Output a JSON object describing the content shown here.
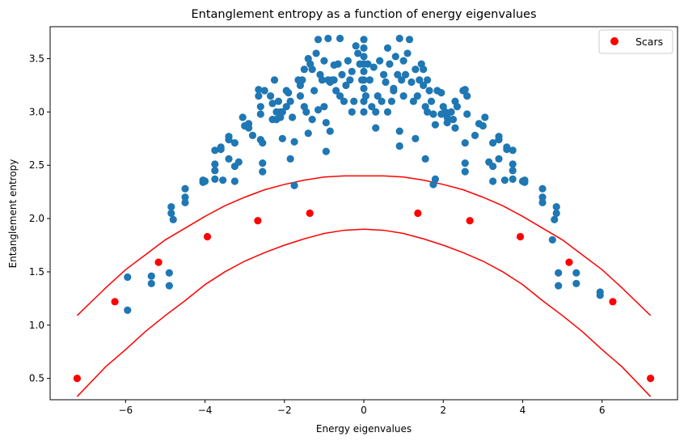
{
  "chart_data": {
    "type": "scatter",
    "title": "Entanglement entropy as a function of energy eigenvalues",
    "xlabel": "Energy eigenvalues",
    "ylabel": "Entanglement entropy",
    "xlim": [
      -7.9,
      7.9
    ],
    "ylim": [
      0.3,
      3.8
    ],
    "xticks": [
      -6,
      -4,
      -2,
      0,
      2,
      4,
      6
    ],
    "xtick_labels": [
      "−6",
      "−4",
      "−2",
      "0",
      "2",
      "4",
      "6"
    ],
    "yticks": [
      0.5,
      1.0,
      1.5,
      2.0,
      2.5,
      3.0,
      3.5
    ],
    "ytick_labels": [
      "0.5",
      "1.0",
      "1.5",
      "2.0",
      "2.5",
      "3.0",
      "3.5"
    ],
    "grid": false,
    "legend": {
      "position": "top-right",
      "entries": [
        "Scars"
      ]
    },
    "colors": {
      "eigenstates": "#1f77b4",
      "scars": "#ff0000",
      "bounds": "#ff0000"
    },
    "series": [
      {
        "kind": "scatter",
        "color": "#1f77b4",
        "points": [
          [
            -5.95,
            1.45
          ],
          [
            -5.95,
            1.14
          ],
          [
            -5.35,
            1.46
          ],
          [
            -5.35,
            1.39
          ],
          [
            -4.9,
            1.49
          ],
          [
            -4.9,
            1.37
          ],
          [
            -4.85,
            2.11
          ],
          [
            -4.85,
            2.05
          ],
          [
            -4.8,
            1.99
          ],
          [
            -4.5,
            2.28
          ],
          [
            -4.5,
            2.2
          ],
          [
            -4.5,
            2.15
          ],
          [
            -4.05,
            2.34
          ],
          [
            -4.05,
            2.36
          ],
          [
            -4.0,
            2.35
          ],
          [
            -3.75,
            2.64
          ],
          [
            -3.75,
            2.51
          ],
          [
            -3.75,
            2.45
          ],
          [
            -3.75,
            2.37
          ],
          [
            -3.6,
            2.67
          ],
          [
            -3.6,
            2.65
          ],
          [
            -3.55,
            2.36
          ],
          [
            -3.4,
            2.77
          ],
          [
            -3.4,
            2.74
          ],
          [
            -3.4,
            2.56
          ],
          [
            -3.25,
            2.71
          ],
          [
            -3.25,
            2.49
          ],
          [
            -3.25,
            2.35
          ],
          [
            -3.15,
            2.53
          ],
          [
            -3.05,
            2.95
          ],
          [
            -3.0,
            2.87
          ],
          [
            -2.9,
            2.89
          ],
          [
            -2.9,
            2.85
          ],
          [
            -2.8,
            2.78
          ],
          [
            -2.65,
            3.21
          ],
          [
            -2.65,
            3.15
          ],
          [
            -2.6,
            3.05
          ],
          [
            -2.6,
            2.98
          ],
          [
            -2.6,
            2.74
          ],
          [
            -2.55,
            2.71
          ],
          [
            -2.55,
            2.52
          ],
          [
            -2.55,
            2.44
          ],
          [
            -2.3,
            3.08
          ],
          [
            -2.3,
            2.93
          ],
          [
            -2.25,
            3.3
          ],
          [
            -2.2,
            3.0
          ],
          [
            -2.2,
            2.93
          ],
          [
            -2.15,
            3.1
          ],
          [
            -2.1,
            3.0
          ],
          [
            -2.05,
            2.75
          ],
          [
            -1.95,
            3.2
          ],
          [
            -1.9,
            3.18
          ],
          [
            -1.85,
            3.1
          ],
          [
            -1.8,
            2.95
          ],
          [
            -1.75,
            2.72
          ],
          [
            -1.65,
            3.3
          ],
          [
            -1.6,
            3.25
          ],
          [
            -1.55,
            3.3
          ],
          [
            -1.5,
            3.05
          ],
          [
            -1.45,
            3.0
          ],
          [
            -1.4,
            2.8
          ],
          [
            -1.4,
            3.5
          ],
          [
            -1.35,
            3.45
          ],
          [
            -1.3,
            3.4
          ],
          [
            -1.25,
            3.2
          ],
          [
            -1.2,
            3.55
          ],
          [
            -1.15,
            3.68
          ],
          [
            -1.1,
            3.35
          ],
          [
            -1.05,
            3.3
          ],
          [
            -1.0,
            3.05
          ],
          [
            -0.95,
            2.9
          ],
          [
            -0.9,
            3.3
          ],
          [
            -0.9,
            3.69
          ],
          [
            -0.85,
            3.28
          ],
          [
            -0.8,
            3.3
          ],
          [
            -0.75,
            3.44
          ],
          [
            -0.7,
            3.2
          ],
          [
            -0.65,
            3.45
          ],
          [
            -0.6,
            3.15
          ],
          [
            -0.55,
            3.35
          ],
          [
            -0.5,
            3.1
          ],
          [
            -0.45,
            3.25
          ],
          [
            -0.4,
            3.48
          ],
          [
            -0.35,
            3.3
          ],
          [
            -0.3,
            3.38
          ],
          [
            -0.25,
            3.1
          ],
          [
            -0.2,
            3.62
          ],
          [
            -0.15,
            3.55
          ],
          [
            -0.1,
            3.45
          ],
          [
            -0.05,
            3.3
          ],
          [
            0.0,
            3.68
          ],
          [
            0.0,
            3.6
          ],
          [
            0.0,
            3.52
          ],
          [
            0.0,
            3.45
          ],
          [
            0.0,
            3.38
          ],
          [
            0.0,
            3.3
          ],
          [
            0.0,
            3.22
          ],
          [
            0.0,
            3.1
          ],
          [
            0.0,
            3.0
          ],
          [
            0.05,
            3.15
          ],
          [
            0.1,
            3.45
          ],
          [
            0.15,
            3.3
          ],
          [
            0.2,
            3.05
          ],
          [
            0.25,
            3.42
          ],
          [
            0.3,
            2.85
          ],
          [
            0.35,
            3.15
          ],
          [
            0.4,
            3.48
          ],
          [
            0.45,
            3.1
          ],
          [
            0.5,
            3.35
          ],
          [
            0.55,
            3.28
          ],
          [
            0.6,
            3.0
          ],
          [
            0.65,
            3.45
          ],
          [
            0.7,
            3.1
          ],
          [
            0.75,
            3.2
          ],
          [
            0.8,
            3.52
          ],
          [
            0.85,
            3.35
          ],
          [
            0.9,
            3.69
          ],
          [
            0.95,
            3.3
          ],
          [
            1.0,
            3.15
          ],
          [
            1.05,
            3.35
          ],
          [
            1.1,
            3.55
          ],
          [
            1.15,
            3.68
          ],
          [
            1.2,
            3.28
          ],
          [
            1.25,
            3.1
          ],
          [
            1.3,
            3.4
          ],
          [
            1.35,
            3.15
          ],
          [
            1.4,
            3.3
          ],
          [
            1.45,
            3.45
          ],
          [
            1.5,
            3.25
          ],
          [
            1.55,
            3.05
          ],
          [
            1.6,
            3.3
          ],
          [
            1.65,
            3.2
          ],
          [
            1.7,
            3.1
          ],
          [
            1.75,
            2.98
          ],
          [
            1.8,
            2.88
          ],
          [
            1.85,
            3.2
          ],
          [
            1.95,
            3.18
          ],
          [
            2.0,
            3.05
          ],
          [
            2.1,
            2.95
          ],
          [
            2.2,
            3.0
          ],
          [
            2.25,
            2.93
          ],
          [
            2.3,
            3.1
          ],
          [
            2.3,
            2.85
          ],
          [
            2.55,
            3.21
          ],
          [
            2.6,
            3.15
          ],
          [
            2.6,
            2.98
          ],
          [
            2.55,
            2.71
          ],
          [
            2.55,
            2.52
          ],
          [
            2.55,
            2.44
          ],
          [
            2.8,
            2.78
          ],
          [
            2.9,
            2.89
          ],
          [
            3.0,
            2.87
          ],
          [
            3.05,
            2.95
          ],
          [
            3.15,
            2.53
          ],
          [
            3.25,
            2.71
          ],
          [
            3.25,
            2.49
          ],
          [
            3.25,
            2.35
          ],
          [
            3.4,
            2.77
          ],
          [
            3.4,
            2.74
          ],
          [
            3.4,
            2.56
          ],
          [
            3.55,
            2.36
          ],
          [
            3.6,
            2.67
          ],
          [
            3.6,
            2.65
          ],
          [
            3.75,
            2.64
          ],
          [
            3.75,
            2.51
          ],
          [
            3.75,
            2.45
          ],
          [
            3.75,
            2.37
          ],
          [
            4.0,
            2.35
          ],
          [
            4.05,
            2.36
          ],
          [
            4.05,
            2.34
          ],
          [
            4.5,
            2.28
          ],
          [
            4.5,
            2.2
          ],
          [
            4.5,
            2.15
          ],
          [
            4.8,
            1.99
          ],
          [
            4.85,
            2.05
          ],
          [
            4.85,
            2.11
          ],
          [
            4.75,
            1.8
          ],
          [
            4.9,
            1.49
          ],
          [
            4.9,
            1.37
          ],
          [
            5.35,
            1.49
          ],
          [
            5.35,
            1.39
          ],
          [
            5.95,
            1.31
          ],
          [
            5.95,
            1.28
          ],
          [
            -1.85,
            2.56
          ],
          [
            -1.3,
            2.93
          ],
          [
            -0.95,
            2.63
          ],
          [
            0.9,
            2.68
          ],
          [
            1.55,
            2.56
          ],
          [
            1.8,
            2.37
          ],
          [
            1.75,
            2.32
          ],
          [
            -1.75,
            2.31
          ],
          [
            -0.85,
            2.82
          ],
          [
            0.9,
            2.82
          ],
          [
            1.3,
            2.75
          ],
          [
            -1.15,
            3.02
          ],
          [
            -2.5,
            3.2
          ],
          [
            2.5,
            3.2
          ],
          [
            -2.05,
            3.0
          ],
          [
            2.05,
            3.0
          ],
          [
            -1.95,
            3.05
          ],
          [
            1.95,
            2.98
          ],
          [
            -0.6,
            3.69
          ],
          [
            0.6,
            3.6
          ],
          [
            -1.5,
            3.4
          ],
          [
            1.5,
            3.4
          ],
          [
            -2.1,
            2.95
          ],
          [
            2.1,
            2.9
          ],
          [
            -0.3,
            3.0
          ],
          [
            0.3,
            3.0
          ],
          [
            -1.6,
            3.15
          ],
          [
            1.6,
            3.0
          ],
          [
            -2.35,
            3.15
          ],
          [
            2.35,
            3.05
          ],
          [
            -1.0,
            3.48
          ],
          [
            1.0,
            3.48
          ],
          [
            -0.75,
            3.3
          ],
          [
            0.75,
            3.22
          ]
        ]
      },
      {
        "kind": "scatter",
        "name": "Scars",
        "color": "#ff0000",
        "points": [
          [
            -7.22,
            0.5
          ],
          [
            -6.27,
            1.22
          ],
          [
            -5.17,
            1.59
          ],
          [
            -3.94,
            1.83
          ],
          [
            -2.67,
            1.98
          ],
          [
            -1.36,
            2.05
          ],
          [
            1.36,
            2.05
          ],
          [
            2.67,
            1.98
          ],
          [
            3.94,
            1.83
          ],
          [
            5.17,
            1.59
          ],
          [
            6.27,
            1.22
          ],
          [
            7.22,
            0.5
          ]
        ]
      },
      {
        "kind": "line",
        "color": "#ff0000",
        "x": [
          -7.22,
          -6.5,
          -6.0,
          -5.5,
          -5.0,
          -4.5,
          -4.0,
          -3.5,
          -3.0,
          -2.5,
          -2.0,
          -1.5,
          -1.0,
          -0.5,
          0,
          0.5,
          1.0,
          1.5,
          2.0,
          2.5,
          3.0,
          3.5,
          4.0,
          4.5,
          5.0,
          5.5,
          6.0,
          6.5,
          7.22
        ],
        "y": [
          1.09,
          1.35,
          1.52,
          1.66,
          1.8,
          1.91,
          2.02,
          2.12,
          2.2,
          2.27,
          2.32,
          2.36,
          2.39,
          2.4,
          2.4,
          2.4,
          2.39,
          2.36,
          2.32,
          2.27,
          2.2,
          2.12,
          2.02,
          1.91,
          1.8,
          1.66,
          1.52,
          1.35,
          1.09
        ]
      },
      {
        "kind": "line",
        "color": "#ff0000",
        "x": [
          -7.22,
          -6.5,
          -6.0,
          -5.5,
          -5.0,
          -4.5,
          -4.0,
          -3.5,
          -3.0,
          -2.5,
          -2.0,
          -1.5,
          -1.0,
          -0.5,
          0,
          0.5,
          1.0,
          1.5,
          2.0,
          2.5,
          3.0,
          3.5,
          4.0,
          4.5,
          5.0,
          5.5,
          6.0,
          6.5,
          7.22
        ],
        "y": [
          0.33,
          0.61,
          0.77,
          0.94,
          1.09,
          1.23,
          1.38,
          1.5,
          1.6,
          1.68,
          1.75,
          1.81,
          1.86,
          1.89,
          1.9,
          1.89,
          1.86,
          1.81,
          1.75,
          1.68,
          1.6,
          1.5,
          1.38,
          1.23,
          1.09,
          0.94,
          0.77,
          0.61,
          0.33
        ]
      }
    ]
  }
}
